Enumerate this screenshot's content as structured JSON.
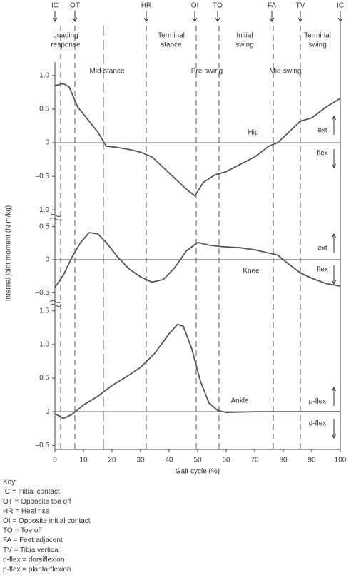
{
  "figure": {
    "y_label": "Internal joint moment (N m/kg)",
    "x_label": "Gait cycle (%)",
    "events": [
      {
        "label": "IC",
        "x": 0
      },
      {
        "label": "OT",
        "x": 7
      },
      {
        "label": "HR",
        "x": 32
      },
      {
        "label": "OI",
        "x": 49
      },
      {
        "label": "TO",
        "x": 57
      },
      {
        "label": "FA",
        "x": 76
      },
      {
        "label": "TV",
        "x": 86
      },
      {
        "label": "IC",
        "x": 100
      }
    ],
    "phase_boundaries": [
      2,
      7,
      17,
      32,
      49.5,
      57.5,
      76.5,
      86
    ],
    "phases": [
      [
        "Loading",
        "response"
      ],
      [
        "Terminal",
        "stance"
      ],
      [
        "Initial",
        "swing"
      ],
      [
        "Terminal",
        "swing"
      ],
      [
        "Mid-stance"
      ],
      [
        "Pre-swing"
      ],
      [
        "Mid-swing"
      ]
    ],
    "key": [
      "Key:",
      "IC = Initial contact",
      "OT = Opposite toe off",
      "HR = Heel rise",
      "OI = Opposite initial contact",
      "TO = Toe off",
      "FA = Feet adjacent",
      "TV = Tibia vertical",
      "d-flex = dorsiflexion",
      "p-flex = plantarflexion"
    ]
  },
  "chart_data": [
    {
      "type": "line",
      "label": "Hip",
      "annotations": [
        "ext",
        "flex"
      ],
      "color": "#555555",
      "xlim": [
        0,
        100
      ],
      "ylim": [
        -1.05,
        1.2
      ],
      "yticks": [
        {
          "value": 1,
          "label": "1.0"
        },
        0.5,
        0,
        {
          "value": -0.5,
          "label": "–0.5"
        },
        {
          "value": -1,
          "label": "–1.0"
        }
      ],
      "x": [
        0,
        3,
        5,
        8,
        12,
        15,
        18,
        22,
        26,
        30,
        34,
        38,
        42,
        46,
        49,
        52,
        56,
        60,
        65,
        70,
        75,
        78,
        82,
        86,
        90,
        95,
        100
      ],
      "values": [
        0.85,
        0.88,
        0.83,
        0.53,
        0.32,
        0.16,
        -0.05,
        -0.07,
        -0.1,
        -0.14,
        -0.21,
        -0.37,
        -0.53,
        -0.69,
        -0.79,
        -0.59,
        -0.48,
        -0.43,
        -0.32,
        -0.21,
        -0.05,
        0,
        0.16,
        0.32,
        0.37,
        0.53,
        0.66
      ]
    },
    {
      "type": "line",
      "label": "Knee",
      "annotations": [
        "ext",
        "flex"
      ],
      "color": "#555555",
      "xlim": [
        0,
        100
      ],
      "ylim": [
        -0.55,
        0.55
      ],
      "yticks": [
        0.5,
        0,
        {
          "value": -0.5,
          "label": "–0.5"
        }
      ],
      "x": [
        0,
        3,
        6,
        9,
        12,
        15,
        18,
        22,
        26,
        30,
        34,
        38,
        42,
        46,
        50,
        54,
        58,
        65,
        70,
        75,
        78,
        82,
        86,
        90,
        95,
        100
      ],
      "values": [
        -0.42,
        -0.23,
        0.04,
        0.26,
        0.41,
        0.39,
        0.26,
        0.04,
        -0.14,
        -0.26,
        -0.34,
        -0.3,
        -0.12,
        0.13,
        0.26,
        0.22,
        0.2,
        0.18,
        0.15,
        0.1,
        0.07,
        -0.07,
        -0.2,
        -0.28,
        -0.36,
        -0.4
      ]
    },
    {
      "type": "line",
      "label": "Ankle",
      "annotations": [
        "p-flex",
        "d-flex"
      ],
      "color": "#555555",
      "xlim": [
        0,
        100
      ],
      "ylim": [
        -0.55,
        1.55
      ],
      "yticks": [
        1.5,
        {
          "value": 1,
          "label": "1.0"
        },
        0.5,
        0,
        {
          "value": -0.5,
          "label": "–0.5"
        }
      ],
      "xticks": [
        0,
        10,
        20,
        30,
        40,
        50,
        60,
        70,
        80,
        90,
        100
      ],
      "x": [
        0,
        3,
        6,
        10,
        15,
        20,
        25,
        30,
        35,
        40,
        43,
        45,
        48,
        51,
        54,
        57,
        60,
        70,
        80,
        90,
        100
      ],
      "values": [
        -0.03,
        -0.1,
        -0.04,
        0.1,
        0.23,
        0.39,
        0.52,
        0.66,
        0.87,
        1.16,
        1.3,
        1.27,
        0.93,
        0.45,
        0.13,
        0.02,
        -0.01,
        0,
        0,
        0,
        0
      ]
    }
  ]
}
